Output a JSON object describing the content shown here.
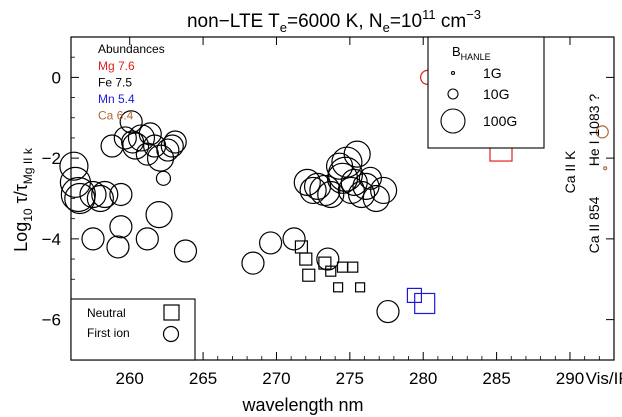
{
  "chart_data": {
    "type": "scatter",
    "title_parts": {
      "pre": "non−LTE T",
      "sub_e1": "e",
      "mid": "=6000 K, N",
      "sub_e2": "e",
      "eq": "=10",
      "sup": "11",
      "post": " cm",
      "sup2": "−3"
    },
    "xlabel": "wavelength nm",
    "ylabel_parts": {
      "pre": "Log",
      "sub10": "10",
      "mid": " τ/τ",
      "sub": "Mg II k"
    },
    "xlim": [
      256,
      293
    ],
    "ylim": [
      -7,
      1
    ],
    "xticks": [
      260,
      265,
      270,
      275,
      280,
      285,
      290
    ],
    "xtick_labels": [
      "260",
      "265",
      "270",
      "275",
      "280",
      "285",
      "290"
    ],
    "x_extra_label": "Vis/IR",
    "yticks": [
      0,
      -2,
      -4,
      -6
    ],
    "ytick_labels": [
      "0",
      "−2",
      "−4",
      "−6"
    ],
    "abundances": {
      "header": "Abundances",
      "items": [
        {
          "label": "Mg 7.6",
          "color": "#e02020"
        },
        {
          "label": "Fe 7.5",
          "color": "#000000"
        },
        {
          "label": "Mn 5.4",
          "color": "#1a1adf"
        },
        {
          "label": "Ca 6.4",
          "color": "#b06a3a"
        }
      ]
    },
    "hanle_legend": {
      "title_pre": "B",
      "title_sub": "HANLE",
      "entries": [
        {
          "label": "1G",
          "size": 1
        },
        {
          "label": "10G",
          "size": 10
        },
        {
          "label": "100G",
          "size": 100
        }
      ]
    },
    "shape_legend": {
      "entries": [
        {
          "label": "Neutral",
          "shape": "square"
        },
        {
          "label": "First ion",
          "shape": "circle"
        }
      ]
    },
    "right_labels": [
      "Ca II K",
      "Ca II 854",
      "He I 1083 ?"
    ],
    "series": [
      {
        "element": "Fe",
        "shape": "circle",
        "color": "#000000",
        "points": [
          [
            256.2,
            -2.2,
            28
          ],
          [
            256.3,
            -2.6,
            30
          ],
          [
            256.5,
            -2.9,
            34
          ],
          [
            256.6,
            -3.0,
            30
          ],
          [
            257.5,
            -2.9,
            26
          ],
          [
            258.0,
            -3.0,
            26
          ],
          [
            258.3,
            -2.9,
            26
          ],
          [
            258.8,
            -1.7,
            22
          ],
          [
            259.4,
            -2.9,
            22
          ],
          [
            257.5,
            -4.0,
            22
          ],
          [
            259.2,
            -4.2,
            22
          ],
          [
            259.4,
            -3.7,
            22
          ],
          [
            259.7,
            -1.5,
            22
          ],
          [
            260.1,
            -1.1,
            22
          ],
          [
            260.2,
            -1.6,
            22
          ],
          [
            260.4,
            -1.7,
            26
          ],
          [
            260.8,
            -1.5,
            26
          ],
          [
            261.2,
            -1.9,
            22
          ],
          [
            261.4,
            -1.4,
            22
          ],
          [
            261.7,
            -1.7,
            22
          ],
          [
            262.1,
            -2.0,
            26
          ],
          [
            262.3,
            -2.5,
            14
          ],
          [
            262.6,
            -1.8,
            22
          ],
          [
            262.9,
            -1.7,
            22
          ],
          [
            263.1,
            -1.6,
            22
          ],
          [
            261.2,
            -4.0,
            22
          ],
          [
            262.0,
            -3.4,
            26
          ],
          [
            263.8,
            -4.3,
            22
          ],
          [
            268.4,
            -4.6,
            22
          ],
          [
            269.6,
            -4.1,
            22
          ],
          [
            271.2,
            -4.0,
            22
          ],
          [
            272.1,
            -2.6,
            26
          ],
          [
            272.5,
            -2.8,
            26
          ],
          [
            272.8,
            -2.7,
            26
          ],
          [
            273.3,
            -2.8,
            30
          ],
          [
            273.7,
            -2.9,
            26
          ],
          [
            274.3,
            -2.2,
            26
          ],
          [
            274.5,
            -2.5,
            30
          ],
          [
            274.7,
            -2.4,
            34
          ],
          [
            274.8,
            -2.1,
            30
          ],
          [
            275.1,
            -2.8,
            26
          ],
          [
            275.3,
            -2.6,
            26
          ],
          [
            275.5,
            -1.9,
            26
          ],
          [
            275.8,
            -2.9,
            26
          ],
          [
            276.1,
            -2.7,
            26
          ],
          [
            276.4,
            -2.5,
            22
          ],
          [
            276.8,
            -3.0,
            26
          ],
          [
            277.3,
            -2.8,
            26
          ],
          [
            277.6,
            -5.8,
            22
          ],
          [
            273.5,
            -4.5,
            22
          ]
        ]
      },
      {
        "element": "Fe",
        "shape": "square",
        "color": "#000000",
        "points": [
          [
            271.7,
            -4.2,
            12
          ],
          [
            272.0,
            -4.5,
            12
          ],
          [
            272.2,
            -4.9,
            12
          ],
          [
            273.3,
            -4.6,
            12
          ],
          [
            273.7,
            -4.8,
            10
          ],
          [
            274.5,
            -4.7,
            10
          ],
          [
            275.2,
            -4.7,
            10
          ],
          [
            274.2,
            -5.2,
            9
          ],
          [
            275.7,
            -5.2,
            9
          ]
        ]
      },
      {
        "element": "Mg",
        "shape": "circle",
        "color": "#e02020",
        "points": [
          [
            280.3,
            0.0,
            14
          ]
        ]
      },
      {
        "element": "Mg",
        "shape": "square",
        "color": "#e02020",
        "points": [
          [
            285.3,
            -1.8,
            22
          ]
        ]
      },
      {
        "element": "Mn",
        "shape": "square",
        "color": "#1a1adf",
        "points": [
          [
            279.4,
            -5.4,
            14
          ],
          [
            280.1,
            -5.6,
            20
          ]
        ]
      },
      {
        "element": "Ca",
        "shape": "circle",
        "color": "#b06a3a",
        "points": [
          [
            292.2,
            -1.35,
            12
          ],
          [
            292.4,
            -2.25,
            3
          ]
        ]
      }
    ]
  }
}
